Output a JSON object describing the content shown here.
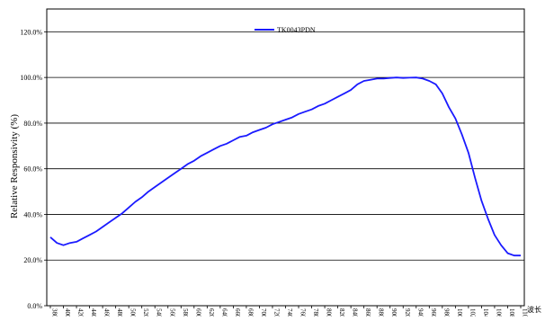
{
  "chart_data": {
    "type": "line",
    "title": "",
    "ylabel": "Relative Responsivity (%)",
    "xlabel": "",
    "x_unit_label": "波长",
    "ylim": [
      0,
      130
    ],
    "xlim": [
      380,
      1100
    ],
    "grid": "horizontal",
    "legend_position": "top-center",
    "y_ticks": [
      0,
      20,
      40,
      60,
      80,
      100,
      120
    ],
    "y_tick_labels": [
      "0.0%",
      "20.0%",
      "40.0%",
      "60.0%",
      "80.0%",
      "100.0%",
      "120.0%"
    ],
    "x_ticks": [
      380,
      400,
      420,
      440,
      460,
      480,
      500,
      520,
      540,
      560,
      580,
      600,
      620,
      640,
      660,
      680,
      700,
      720,
      740,
      760,
      780,
      800,
      820,
      840,
      860,
      880,
      900,
      920,
      940,
      960,
      980,
      1000,
      1020,
      1040,
      1060,
      1080,
      1100
    ],
    "x_tick_labels": [
      "380",
      "400",
      "420",
      "440",
      "460",
      "480",
      "500",
      "520",
      "540",
      "560",
      "580",
      "600",
      "620",
      "640",
      "660",
      "680",
      "700",
      "720",
      "740",
      "760",
      "780",
      "800",
      "820",
      "840",
      "860",
      "880",
      "900",
      "920",
      "940",
      "960",
      "980",
      "1000",
      "1020",
      "1040",
      "1060",
      "1080",
      "1100"
    ],
    "series": [
      {
        "name": "TK0043PDN",
        "color": "#1a1aff",
        "x": [
          380,
          390,
          400,
          410,
          420,
          430,
          440,
          450,
          460,
          470,
          480,
          490,
          500,
          510,
          520,
          530,
          540,
          550,
          560,
          570,
          580,
          590,
          600,
          610,
          620,
          630,
          640,
          650,
          660,
          670,
          680,
          690,
          700,
          710,
          720,
          730,
          740,
          750,
          760,
          770,
          780,
          790,
          800,
          810,
          820,
          830,
          840,
          850,
          860,
          870,
          880,
          890,
          900,
          910,
          920,
          930,
          940,
          950,
          960,
          970,
          980,
          990,
          1000,
          1010,
          1020,
          1030,
          1040,
          1050,
          1060,
          1070,
          1080,
          1090,
          1100
        ],
        "y": [
          30,
          27.5,
          26.5,
          27.5,
          28,
          29.5,
          31,
          32.5,
          34.5,
          36.5,
          38.5,
          40.5,
          43,
          45.5,
          47.5,
          50,
          52,
          54,
          56,
          58,
          60,
          62,
          63.5,
          65.5,
          67,
          68.5,
          70,
          71,
          72.5,
          74,
          74.5,
          76,
          77,
          78,
          79.5,
          80.5,
          81.5,
          82.5,
          84,
          85,
          86,
          87.5,
          88.5,
          90,
          91.5,
          93,
          94.5,
          97,
          98.5,
          99,
          99.5,
          99.5,
          99.8,
          100,
          99.8,
          99.9,
          100,
          99.5,
          98.5,
          97,
          93,
          87,
          82,
          75,
          67,
          56,
          46,
          38,
          31,
          26.5,
          23,
          22,
          22
        ]
      }
    ]
  }
}
